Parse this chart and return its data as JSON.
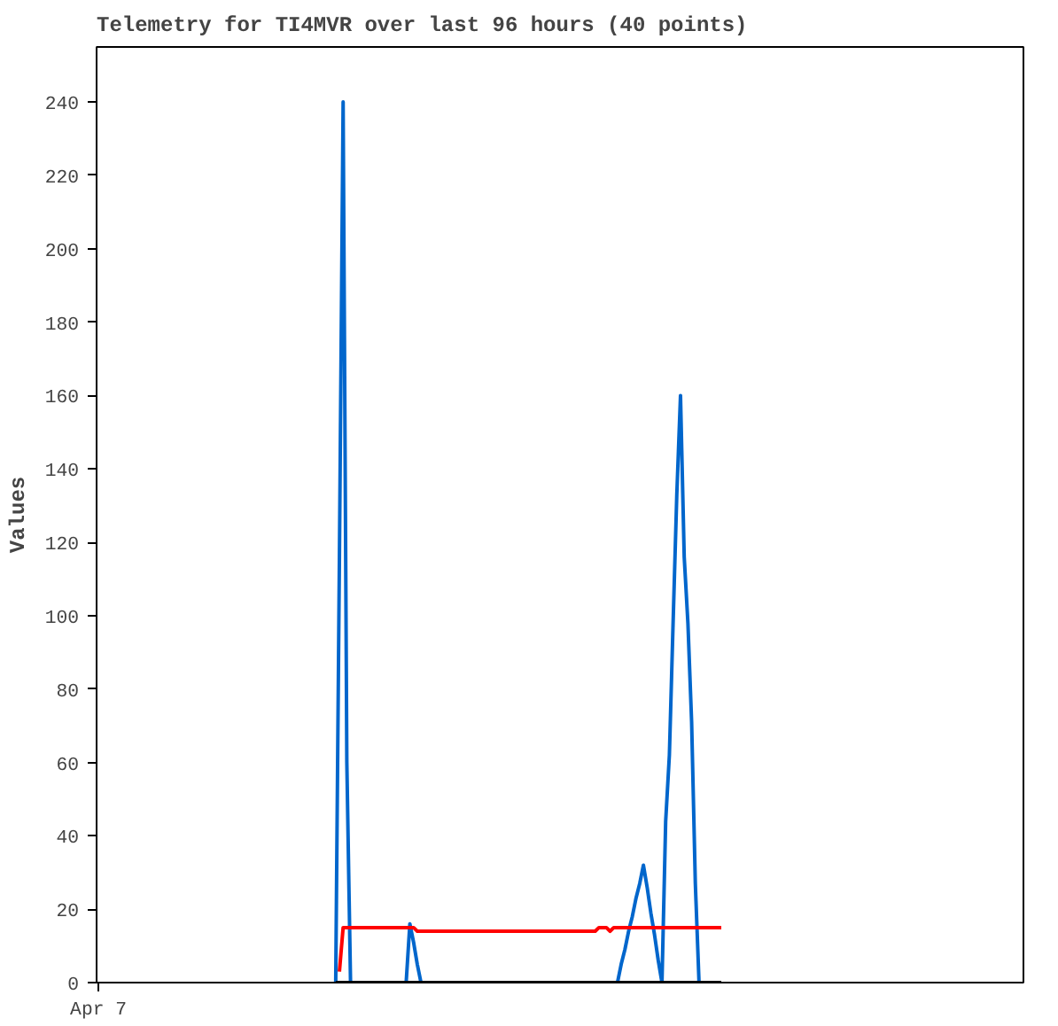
{
  "chart_data": {
    "type": "line",
    "title": "Telemetry for TI4MVR over last 96 hours (40 points)",
    "ylabel": "Values",
    "categories": [
      "Apr 7",
      null,
      null,
      null,
      null,
      null,
      null,
      null,
      null,
      null,
      null,
      null,
      null,
      null,
      null,
      null,
      null,
      null,
      null,
      null,
      null,
      null,
      null,
      null,
      null,
      null,
      null,
      null,
      null,
      null,
      null,
      null,
      null,
      null,
      null,
      null,
      null,
      null,
      null,
      null,
      null,
      null,
      null,
      null,
      null,
      null,
      null,
      null,
      null,
      null,
      null,
      null,
      null,
      null,
      null,
      null,
      null,
      null,
      null,
      null,
      null,
      null,
      null,
      null,
      null,
      null,
      null,
      null,
      null,
      null,
      null,
      null,
      null,
      null,
      null,
      null,
      null,
      null,
      null,
      null,
      null,
      null,
      null,
      null,
      null,
      null,
      null,
      null,
      null,
      null,
      null,
      null,
      null,
      null,
      null,
      null,
      null,
      null,
      null,
      null,
      null,
      null,
      null,
      null,
      null,
      null,
      null,
      null,
      null,
      null,
      null,
      null,
      null,
      null,
      null,
      null,
      null,
      null,
      null,
      null,
      null,
      null,
      null,
      null,
      null,
      null,
      null,
      null,
      null,
      null,
      null,
      null,
      null,
      null,
      null,
      null,
      null,
      null,
      null,
      null,
      null,
      null,
      null,
      null,
      null,
      null,
      null,
      null,
      null,
      null,
      null,
      null,
      null,
      null,
      null,
      null,
      null,
      null,
      null,
      null,
      null,
      null,
      null,
      null,
      null,
      null,
      null,
      null,
      null,
      null,
      null,
      null,
      null,
      null,
      null,
      null,
      null,
      null,
      null,
      null,
      null,
      null,
      null,
      null,
      null,
      null,
      null,
      null,
      null,
      null,
      null,
      null,
      null,
      null,
      null,
      null,
      null,
      null,
      null,
      null,
      null,
      null,
      null,
      null,
      null,
      null,
      null,
      null,
      null,
      null,
      null,
      null,
      null,
      null,
      null,
      null,
      null,
      null,
      null,
      null,
      null,
      null,
      null,
      null,
      null,
      null,
      null,
      null,
      null,
      null,
      null,
      null,
      null,
      null,
      null,
      null,
      null,
      null,
      null,
      null,
      null,
      null,
      null,
      null,
      null,
      null,
      null,
      null,
      null,
      null
    ],
    "ylim": [
      0,
      255
    ],
    "yticks": [
      0,
      20,
      40,
      60,
      80,
      100,
      120,
      140,
      160,
      180,
      200,
      220,
      240
    ],
    "marker": "none",
    "line_style": "solid",
    "series": [
      {
        "color": "#000000",
        "values": [
          null,
          null,
          null,
          null,
          null,
          null,
          null,
          null,
          null,
          null,
          null,
          null,
          null,
          null,
          null,
          null,
          null,
          null,
          null,
          null,
          null,
          null,
          null,
          null,
          null,
          null,
          null,
          null,
          null,
          null,
          null,
          null,
          null,
          null,
          null,
          null,
          null,
          null,
          null,
          null,
          null,
          null,
          null,
          null,
          null,
          null,
          null,
          null,
          null,
          null,
          null,
          null,
          null,
          null,
          null,
          null,
          null,
          null,
          null,
          null,
          null,
          null,
          null,
          null,
          0,
          0,
          0,
          0,
          0,
          0,
          0,
          0,
          0,
          0,
          0,
          0,
          0,
          0,
          0,
          0,
          0,
          0,
          0,
          0,
          0,
          0,
          0,
          0,
          0,
          0,
          0,
          0,
          0,
          0,
          0,
          0,
          0,
          0,
          0,
          0,
          0,
          0,
          0,
          0,
          0,
          0,
          0,
          0,
          0,
          0,
          0,
          0,
          0,
          0,
          0,
          0,
          0,
          0,
          0,
          0,
          0,
          0,
          0,
          0,
          0,
          0,
          0,
          0,
          0,
          0,
          0,
          0,
          0,
          0,
          0,
          0,
          0,
          0,
          0,
          0,
          0,
          0,
          0,
          0,
          0,
          0,
          0,
          0,
          0,
          0,
          0,
          0,
          0,
          0,
          0,
          0,
          0,
          0,
          0,
          0,
          0,
          0,
          0,
          0,
          0,
          0,
          0,
          0,
          0,
          null,
          null,
          null,
          null,
          null,
          null,
          null,
          null,
          null,
          null,
          null,
          null,
          null,
          null,
          null,
          null,
          null,
          null,
          null,
          null,
          null,
          null,
          null,
          null,
          null,
          null,
          null,
          null,
          null,
          null,
          null,
          null,
          null,
          null,
          null,
          null,
          null,
          null,
          null,
          null,
          null,
          null,
          null,
          null,
          null,
          null,
          null,
          null,
          null,
          null,
          null,
          null,
          null,
          null,
          null,
          null,
          null,
          null,
          null,
          null,
          null,
          null,
          null,
          null,
          null,
          null,
          null,
          null,
          null,
          null,
          null,
          null,
          null,
          null,
          null,
          null,
          null,
          null,
          null,
          null,
          null
        ]
      },
      {
        "color": "#ff0000",
        "values": [
          null,
          null,
          null,
          null,
          null,
          null,
          null,
          null,
          null,
          null,
          null,
          null,
          null,
          null,
          null,
          null,
          null,
          null,
          null,
          null,
          null,
          null,
          null,
          null,
          null,
          null,
          null,
          null,
          null,
          null,
          null,
          null,
          null,
          null,
          null,
          null,
          null,
          null,
          null,
          null,
          null,
          null,
          null,
          null,
          null,
          null,
          null,
          null,
          null,
          null,
          null,
          null,
          null,
          null,
          null,
          null,
          null,
          null,
          null,
          null,
          null,
          null,
          null,
          null,
          null,
          3,
          15,
          15,
          15,
          15,
          15,
          15,
          15,
          15,
          15,
          15,
          15,
          15,
          15,
          15,
          15,
          15,
          15,
          15,
          15,
          15,
          14,
          14,
          14,
          14,
          14,
          14,
          14,
          14,
          14,
          14,
          14,
          14,
          14,
          14,
          14,
          14,
          14,
          14,
          14,
          14,
          14,
          14,
          14,
          14,
          14,
          14,
          14,
          14,
          14,
          14,
          14,
          14,
          14,
          14,
          14,
          14,
          14,
          14,
          14,
          14,
          14,
          14,
          14,
          14,
          14,
          14,
          14,
          14,
          14,
          15,
          15,
          15,
          14,
          15,
          15,
          15,
          15,
          15,
          15,
          15,
          15,
          15,
          15,
          15,
          15,
          15,
          15,
          15,
          15,
          15,
          15,
          15,
          15,
          15,
          15,
          15,
          15,
          15,
          15,
          15,
          15,
          15,
          15,
          null,
          null,
          null,
          null,
          null,
          null,
          null,
          null,
          null,
          null,
          null,
          null,
          null,
          null,
          null,
          null,
          null,
          null,
          null,
          null,
          null,
          null,
          null,
          null,
          null,
          null,
          null,
          null,
          null,
          null,
          null,
          null,
          null,
          null,
          null,
          null,
          null,
          null,
          null,
          null,
          null,
          null,
          null,
          null,
          null,
          null,
          null,
          null,
          null,
          null,
          null,
          null,
          null,
          null,
          null,
          null,
          null,
          null,
          null,
          null,
          null,
          null,
          null,
          null,
          null,
          null,
          null,
          null,
          null,
          null,
          null,
          null,
          null,
          null,
          null,
          null,
          null,
          null,
          null,
          null,
          null
        ]
      },
      {
        "color": "#0066cc",
        "values": [
          null,
          null,
          null,
          null,
          null,
          null,
          null,
          null,
          null,
          null,
          null,
          null,
          null,
          null,
          null,
          null,
          null,
          null,
          null,
          null,
          null,
          null,
          null,
          null,
          null,
          null,
          null,
          null,
          null,
          null,
          null,
          null,
          null,
          null,
          null,
          null,
          null,
          null,
          null,
          null,
          null,
          null,
          null,
          null,
          null,
          null,
          null,
          null,
          null,
          null,
          null,
          null,
          null,
          null,
          null,
          null,
          null,
          null,
          null,
          null,
          null,
          null,
          null,
          null,
          0,
          116,
          240,
          60,
          0,
          null,
          null,
          null,
          null,
          null,
          null,
          null,
          null,
          null,
          null,
          null,
          null,
          null,
          null,
          0,
          16,
          11,
          5,
          0,
          null,
          null,
          null,
          null,
          null,
          null,
          null,
          null,
          null,
          null,
          null,
          null,
          null,
          null,
          null,
          null,
          null,
          null,
          null,
          null,
          null,
          null,
          null,
          null,
          null,
          null,
          null,
          null,
          null,
          null,
          null,
          null,
          null,
          null,
          null,
          null,
          null,
          null,
          null,
          null,
          null,
          null,
          null,
          null,
          null,
          null,
          null,
          null,
          null,
          null,
          null,
          null,
          0,
          5,
          9,
          14,
          18,
          23,
          27,
          32,
          26,
          19,
          13,
          6,
          0,
          44,
          62,
          98,
          133,
          160,
          116,
          98,
          71,
          27,
          0,
          null,
          null,
          null,
          null,
          null,
          null,
          null,
          null,
          null,
          null,
          null,
          null,
          null,
          null,
          null,
          null,
          null,
          null,
          null,
          null,
          null,
          null,
          null,
          null,
          null,
          null,
          null,
          null,
          null,
          null,
          null,
          null,
          null,
          null,
          null,
          null,
          null,
          null,
          null,
          null,
          null,
          null,
          null,
          null,
          null,
          null,
          null,
          null,
          null,
          null,
          null,
          null,
          null,
          null,
          null,
          null,
          null,
          null,
          null,
          null,
          null,
          null,
          null,
          null,
          null,
          null,
          null,
          null,
          null,
          null,
          null,
          null,
          null,
          null,
          null,
          null,
          null,
          null,
          null,
          null,
          null,
          null,
          null,
          null,
          null,
          null,
          null
        ]
      }
    ]
  }
}
